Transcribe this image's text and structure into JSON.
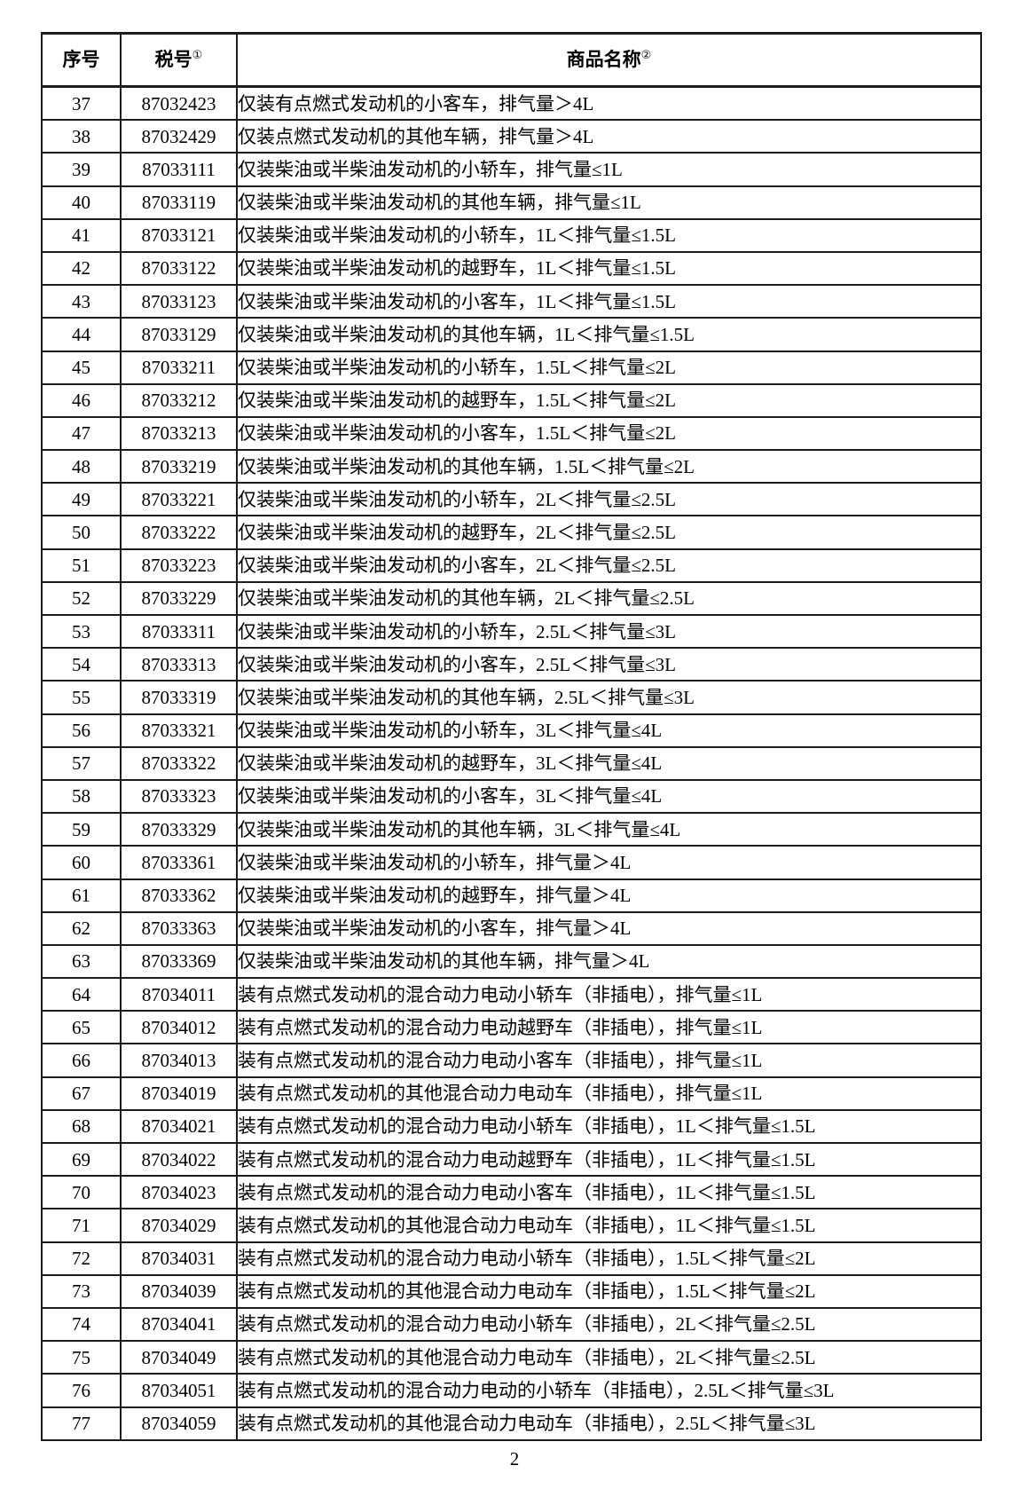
{
  "page": {
    "number": "2"
  },
  "table": {
    "headers": {
      "seq": "序号",
      "tax": "税号",
      "tax_sup": "①",
      "name": "商品名称",
      "name_sup": "②"
    },
    "rows": [
      {
        "seq": "37",
        "tax": "87032423",
        "name": "仅装有点燃式发动机的小客车，排气量＞4L"
      },
      {
        "seq": "38",
        "tax": "87032429",
        "name": "仅装点燃式发动机的其他车辆，排气量＞4L"
      },
      {
        "seq": "39",
        "tax": "87033111",
        "name": "仅装柴油或半柴油发动机的小轿车，排气量≤1L"
      },
      {
        "seq": "40",
        "tax": "87033119",
        "name": "仅装柴油或半柴油发动机的其他车辆，排气量≤1L"
      },
      {
        "seq": "41",
        "tax": "87033121",
        "name": "仅装柴油或半柴油发动机的小轿车，1L＜排气量≤1.5L"
      },
      {
        "seq": "42",
        "tax": "87033122",
        "name": "仅装柴油或半柴油发动机的越野车，1L＜排气量≤1.5L"
      },
      {
        "seq": "43",
        "tax": "87033123",
        "name": "仅装柴油或半柴油发动机的小客车，1L＜排气量≤1.5L"
      },
      {
        "seq": "44",
        "tax": "87033129",
        "name": "仅装柴油或半柴油发动机的其他车辆，1L＜排气量≤1.5L"
      },
      {
        "seq": "45",
        "tax": "87033211",
        "name": "仅装柴油或半柴油发动机的小轿车，1.5L＜排气量≤2L"
      },
      {
        "seq": "46",
        "tax": "87033212",
        "name": "仅装柴油或半柴油发动机的越野车，1.5L＜排气量≤2L"
      },
      {
        "seq": "47",
        "tax": "87033213",
        "name": "仅装柴油或半柴油发动机的小客车，1.5L＜排气量≤2L"
      },
      {
        "seq": "48",
        "tax": "87033219",
        "name": "仅装柴油或半柴油发动机的其他车辆，1.5L＜排气量≤2L"
      },
      {
        "seq": "49",
        "tax": "87033221",
        "name": "仅装柴油或半柴油发动机的小轿车，2L＜排气量≤2.5L"
      },
      {
        "seq": "50",
        "tax": "87033222",
        "name": "仅装柴油或半柴油发动机的越野车，2L＜排气量≤2.5L"
      },
      {
        "seq": "51",
        "tax": "87033223",
        "name": "仅装柴油或半柴油发动机的小客车，2L＜排气量≤2.5L"
      },
      {
        "seq": "52",
        "tax": "87033229",
        "name": "仅装柴油或半柴油发动机的其他车辆，2L＜排气量≤2.5L"
      },
      {
        "seq": "53",
        "tax": "87033311",
        "name": "仅装柴油或半柴油发动机的小轿车，2.5L＜排气量≤3L"
      },
      {
        "seq": "54",
        "tax": "87033313",
        "name": "仅装柴油或半柴油发动机的小客车，2.5L＜排气量≤3L"
      },
      {
        "seq": "55",
        "tax": "87033319",
        "name": "仅装柴油或半柴油发动机的其他车辆，2.5L＜排气量≤3L"
      },
      {
        "seq": "56",
        "tax": "87033321",
        "name": "仅装柴油或半柴油发动机的小轿车，3L＜排气量≤4L"
      },
      {
        "seq": "57",
        "tax": "87033322",
        "name": "仅装柴油或半柴油发动机的越野车，3L＜排气量≤4L"
      },
      {
        "seq": "58",
        "tax": "87033323",
        "name": "仅装柴油或半柴油发动机的小客车，3L＜排气量≤4L"
      },
      {
        "seq": "59",
        "tax": "87033329",
        "name": "仅装柴油或半柴油发动机的其他车辆，3L＜排气量≤4L"
      },
      {
        "seq": "60",
        "tax": "87033361",
        "name": "仅装柴油或半柴油发动机的小轿车，排气量＞4L"
      },
      {
        "seq": "61",
        "tax": "87033362",
        "name": "仅装柴油或半柴油发动机的越野车，排气量＞4L"
      },
      {
        "seq": "62",
        "tax": "87033363",
        "name": "仅装柴油或半柴油发动机的小客车，排气量＞4L"
      },
      {
        "seq": "63",
        "tax": "87033369",
        "name": "仅装柴油或半柴油发动机的其他车辆，排气量＞4L"
      },
      {
        "seq": "64",
        "tax": "87034011",
        "name": "装有点燃式发动机的混合动力电动小轿车（非插电），排气量≤1L"
      },
      {
        "seq": "65",
        "tax": "87034012",
        "name": "装有点燃式发动机的混合动力电动越野车（非插电），排气量≤1L"
      },
      {
        "seq": "66",
        "tax": "87034013",
        "name": "装有点燃式发动机的混合动力电动小客车（非插电），排气量≤1L"
      },
      {
        "seq": "67",
        "tax": "87034019",
        "name": "装有点燃式发动机的其他混合动力电动车（非插电），排气量≤1L"
      },
      {
        "seq": "68",
        "tax": "87034021",
        "name": "装有点燃式发动机的混合动力电动小轿车（非插电），1L＜排气量≤1.5L"
      },
      {
        "seq": "69",
        "tax": "87034022",
        "name": "装有点燃式发动机的混合动力电动越野车（非插电），1L＜排气量≤1.5L"
      },
      {
        "seq": "70",
        "tax": "87034023",
        "name": "装有点燃式发动机的混合动力电动小客车（非插电），1L＜排气量≤1.5L"
      },
      {
        "seq": "71",
        "tax": "87034029",
        "name": "装有点燃式发动机的其他混合动力电动车（非插电），1L＜排气量≤1.5L"
      },
      {
        "seq": "72",
        "tax": "87034031",
        "name": "装有点燃式发动机的混合动力电动小轿车（非插电），1.5L＜排气量≤2L"
      },
      {
        "seq": "73",
        "tax": "87034039",
        "name": "装有点燃式发动机的其他混合动力电动车（非插电），1.5L＜排气量≤2L"
      },
      {
        "seq": "74",
        "tax": "87034041",
        "name": "装有点燃式发动机的混合动力电动小轿车（非插电），2L＜排气量≤2.5L"
      },
      {
        "seq": "75",
        "tax": "87034049",
        "name": "装有点燃式发动机的其他混合动力电动车（非插电），2L＜排气量≤2.5L"
      },
      {
        "seq": "76",
        "tax": "87034051",
        "name": "装有点燃式发动机的混合动力电动的小轿车（非插电），2.5L＜排气量≤3L"
      },
      {
        "seq": "77",
        "tax": "87034059",
        "name": "装有点燃式发动机的其他混合动力电动车（非插电），2.5L＜排气量≤3L"
      }
    ]
  }
}
